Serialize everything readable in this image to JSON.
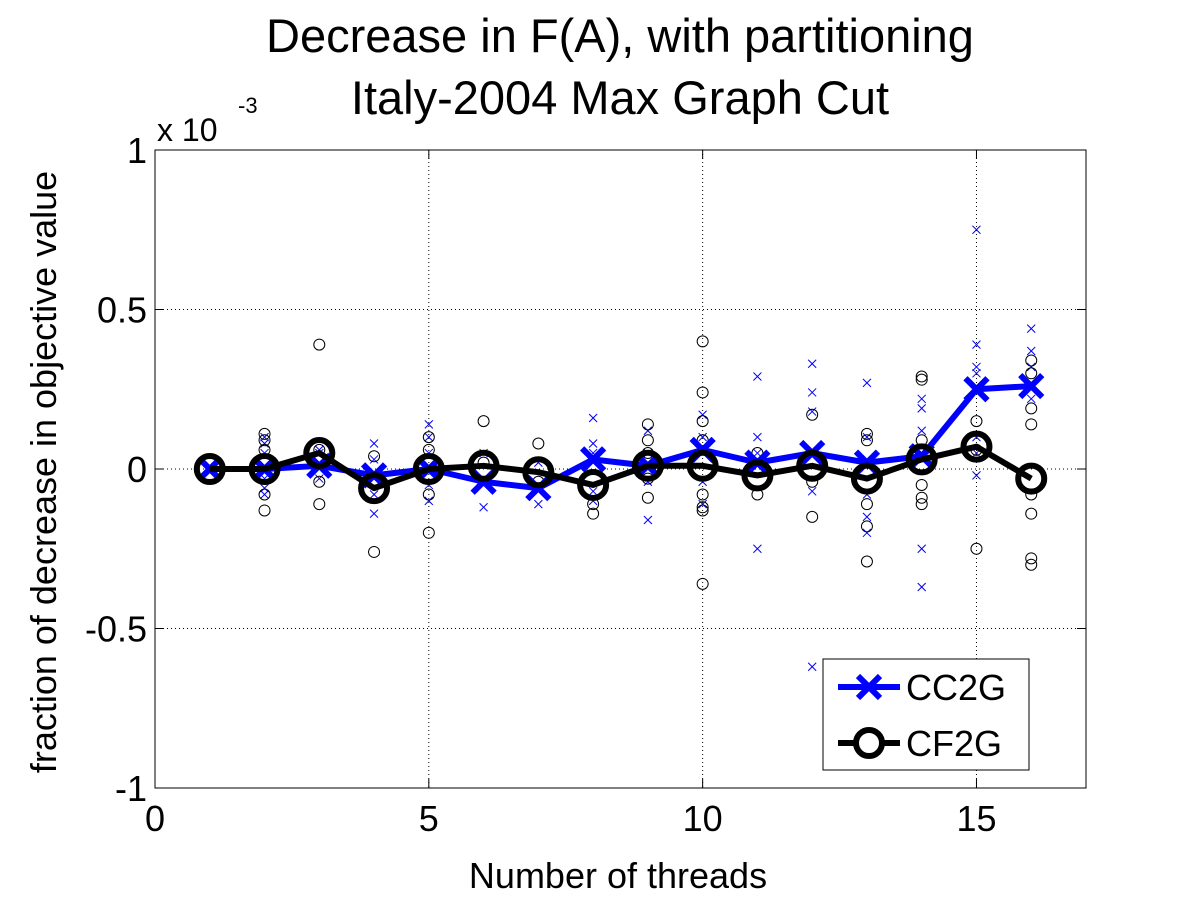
{
  "chart_data": {
    "type": "line",
    "title": "Decrease in F(A), with partitioning",
    "subtitle": "Italy-2004 Max Graph Cut",
    "xlabel": "Number of threads",
    "ylabel": "fraction of decrease in objective value",
    "y_exponent_base": "x 10",
    "y_exponent_power": "-3",
    "xlim": [
      0,
      17
    ],
    "ylim": [
      -1,
      1
    ],
    "x_ticks": [
      0,
      5,
      10,
      15
    ],
    "y_ticks": [
      -1,
      -0.5,
      0,
      0.5,
      1
    ],
    "x_tick_labels": [
      "0",
      "5",
      "10",
      "15"
    ],
    "y_tick_labels": [
      "-1",
      "-0.5",
      "0",
      "0.5",
      "1"
    ],
    "grid": true,
    "legend_position": "bottom-right",
    "x": [
      1,
      2,
      3,
      4,
      5,
      6,
      7,
      8,
      9,
      10,
      11,
      12,
      13,
      14,
      15,
      16
    ],
    "series": [
      {
        "name": "CC2G",
        "color": "#0000ff",
        "marker": "x",
        "values": [
          0,
          0.0,
          0.01,
          -0.02,
          0,
          -0.04,
          -0.06,
          0.03,
          0.01,
          0.06,
          0.02,
          0.05,
          0.02,
          0.04,
          0.25,
          0.26
        ],
        "scatter": [
          [
            2,
            0.1
          ],
          [
            2,
            0.08
          ],
          [
            2,
            0.05
          ],
          [
            2,
            -0.03
          ],
          [
            2,
            -0.06
          ],
          [
            2,
            -0.08
          ],
          [
            3,
            0.06
          ],
          [
            3,
            0.05
          ],
          [
            3,
            -0.03
          ],
          [
            4,
            0.08
          ],
          [
            4,
            0.03
          ],
          [
            4,
            -0.08
          ],
          [
            4,
            -0.14
          ],
          [
            5,
            0.14
          ],
          [
            5,
            0.1
          ],
          [
            5,
            0.05
          ],
          [
            5,
            -0.05
          ],
          [
            5,
            -0.1
          ],
          [
            6,
            0.05
          ],
          [
            6,
            -0.05
          ],
          [
            6,
            -0.12
          ],
          [
            7,
            0.02
          ],
          [
            7,
            -0.07
          ],
          [
            7,
            -0.11
          ],
          [
            8,
            0.16
          ],
          [
            8,
            0.08
          ],
          [
            8,
            0.05
          ],
          [
            8,
            -0.07
          ],
          [
            8,
            -0.1
          ],
          [
            9,
            0.12
          ],
          [
            9,
            0.05
          ],
          [
            9,
            -0.04
          ],
          [
            9,
            -0.16
          ],
          [
            10,
            0.17
          ],
          [
            10,
            0.1
          ],
          [
            10,
            0.05
          ],
          [
            10,
            -0.04
          ],
          [
            10,
            -0.11
          ],
          [
            11,
            0.29
          ],
          [
            11,
            0.1
          ],
          [
            11,
            0.05
          ],
          [
            11,
            -0.25
          ],
          [
            12,
            0.33
          ],
          [
            12,
            0.24
          ],
          [
            12,
            0.18
          ],
          [
            12,
            -0.07
          ],
          [
            12,
            -0.62
          ],
          [
            13,
            0.27
          ],
          [
            13,
            0.1
          ],
          [
            13,
            -0.08
          ],
          [
            13,
            -0.15
          ],
          [
            13,
            -0.2
          ],
          [
            14,
            0.22
          ],
          [
            14,
            0.19
          ],
          [
            14,
            0.12
          ],
          [
            14,
            -0.25
          ],
          [
            14,
            -0.37
          ],
          [
            15,
            0.75
          ],
          [
            15,
            0.39
          ],
          [
            15,
            0.32
          ],
          [
            15,
            0.3
          ],
          [
            15,
            0.1
          ],
          [
            15,
            0.05
          ],
          [
            15,
            -0.02
          ],
          [
            16,
            0.44
          ],
          [
            16,
            0.37
          ],
          [
            16,
            0.32
          ],
          [
            16,
            0.22
          ]
        ]
      },
      {
        "name": "CF2G",
        "color": "#000000",
        "marker": "o",
        "values": [
          0,
          0.0,
          0.05,
          -0.06,
          0,
          0.01,
          -0.01,
          -0.05,
          0.01,
          0.01,
          -0.02,
          0.01,
          -0.03,
          0.03,
          0.07,
          -0.03
        ],
        "scatter": [
          [
            2,
            0.11
          ],
          [
            2,
            0.09
          ],
          [
            2,
            0.06
          ],
          [
            2,
            -0.02
          ],
          [
            2,
            -0.08
          ],
          [
            2,
            -0.13
          ],
          [
            3,
            0.39
          ],
          [
            3,
            0.06
          ],
          [
            3,
            -0.04
          ],
          [
            3,
            -0.11
          ],
          [
            4,
            0.04
          ],
          [
            4,
            -0.04
          ],
          [
            4,
            -0.26
          ],
          [
            5,
            0.1
          ],
          [
            5,
            0.06
          ],
          [
            5,
            -0.08
          ],
          [
            5,
            -0.2
          ],
          [
            6,
            0.15
          ],
          [
            6,
            0.02
          ],
          [
            7,
            0.08
          ],
          [
            7,
            -0.04
          ],
          [
            8,
            -0.11
          ],
          [
            8,
            -0.14
          ],
          [
            9,
            0.14
          ],
          [
            9,
            0.09
          ],
          [
            9,
            0.05
          ],
          [
            9,
            -0.03
          ],
          [
            9,
            -0.09
          ],
          [
            10,
            0.4
          ],
          [
            10,
            0.24
          ],
          [
            10,
            0.15
          ],
          [
            10,
            0.09
          ],
          [
            10,
            -0.08
          ],
          [
            10,
            -0.12
          ],
          [
            10,
            -0.13
          ],
          [
            10,
            -0.36
          ],
          [
            11,
            0.05
          ],
          [
            11,
            -0.08
          ],
          [
            12,
            0.17
          ],
          [
            12,
            -0.04
          ],
          [
            12,
            -0.15
          ],
          [
            13,
            0.11
          ],
          [
            13,
            0.09
          ],
          [
            13,
            -0.11
          ],
          [
            13,
            -0.18
          ],
          [
            13,
            -0.29
          ],
          [
            14,
            0.29
          ],
          [
            14,
            0.28
          ],
          [
            14,
            0.09
          ],
          [
            14,
            -0.05
          ],
          [
            14,
            -0.09
          ],
          [
            14,
            -0.11
          ],
          [
            15,
            0.15
          ],
          [
            15,
            0.06
          ],
          [
            15,
            -0.25
          ],
          [
            16,
            0.34
          ],
          [
            16,
            0.3
          ],
          [
            16,
            0.19
          ],
          [
            16,
            0.14
          ],
          [
            16,
            -0.08
          ],
          [
            16,
            -0.14
          ],
          [
            16,
            -0.28
          ],
          [
            16,
            -0.3
          ]
        ]
      }
    ]
  }
}
